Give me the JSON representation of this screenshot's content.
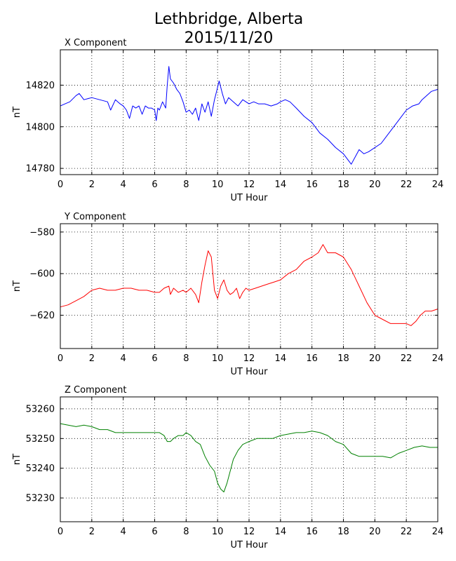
{
  "figure": {
    "title_line1": "Lethbridge, Alberta",
    "title_line2": "2015/11/20"
  },
  "chart_data": [
    {
      "type": "line",
      "title": "X Component",
      "xlabel": "UT Hour",
      "ylabel": "nT",
      "xlim": [
        0,
        24
      ],
      "ylim": [
        14777,
        14837
      ],
      "xticks": [
        0,
        2,
        4,
        6,
        8,
        10,
        12,
        14,
        16,
        18,
        20,
        22,
        24
      ],
      "yticks": [
        14780,
        14800,
        14820
      ],
      "grid": true,
      "color": "#0000ff",
      "series": [
        {
          "x": [
            0,
            0.3,
            0.6,
            1.0,
            1.2,
            1.5,
            2.0,
            2.5,
            3.0,
            3.2,
            3.5,
            3.8,
            4.0,
            4.2,
            4.4,
            4.6,
            4.8,
            5.0,
            5.2,
            5.4,
            5.6,
            5.8,
            6.0,
            6.1,
            6.2,
            6.3,
            6.5,
            6.7,
            6.8,
            6.9,
            7.0,
            7.2,
            7.4,
            7.6,
            7.8,
            8.0,
            8.2,
            8.4,
            8.6,
            8.8,
            9.0,
            9.2,
            9.4,
            9.6,
            9.8,
            10.0,
            10.1,
            10.3,
            10.5,
            10.7,
            11.0,
            11.3,
            11.6,
            12.0,
            12.3,
            12.6,
            13.0,
            13.4,
            13.8,
            14.0,
            14.3,
            14.6,
            15.0,
            15.5,
            16.0,
            16.5,
            17.0,
            17.5,
            18.0,
            18.5,
            19.0,
            19.3,
            19.6,
            20.0,
            20.4,
            20.8,
            21.2,
            21.6,
            22.0,
            22.4,
            22.8,
            23.0,
            23.3,
            23.6,
            24.0
          ],
          "y": [
            14810,
            14811,
            14812,
            14815,
            14816,
            14813,
            14814,
            14813,
            14812,
            14808,
            14813,
            14811,
            14810,
            14808,
            14804,
            14810,
            14809,
            14810,
            14806,
            14810,
            14809,
            14809,
            14808,
            14803,
            14809,
            14808,
            14812,
            14809,
            14820,
            14829,
            14823,
            14821,
            14818,
            14816,
            14812,
            14807,
            14808,
            14806,
            14809,
            14803,
            14811,
            14807,
            14812,
            14805,
            14813,
            14819,
            14822,
            14816,
            14811,
            14814,
            14812,
            14810,
            14813,
            14811,
            14812,
            14811,
            14811,
            14810,
            14811,
            14812,
            14813,
            14812,
            14809,
            14805,
            14802,
            14797,
            14794,
            14790,
            14787,
            14782,
            14789,
            14787,
            14788,
            14790,
            14792,
            14796,
            14800,
            14804,
            14808,
            14810,
            14811,
            14813,
            14815,
            14817,
            14818
          ]
        }
      ]
    },
    {
      "type": "line",
      "title": "Y Component",
      "xlabel": "UT Hour",
      "ylabel": "nT",
      "xlim": [
        0,
        24
      ],
      "ylim": [
        -636,
        -576
      ],
      "xticks": [
        0,
        2,
        4,
        6,
        8,
        10,
        12,
        14,
        16,
        18,
        20,
        22,
        24
      ],
      "yticks": [
        -620,
        -600,
        -580
      ],
      "grid": true,
      "color": "#ff0000",
      "series": [
        {
          "x": [
            0,
            0.5,
            1.0,
            1.5,
            2.0,
            2.5,
            3.0,
            3.5,
            4.0,
            4.5,
            5.0,
            5.5,
            6.0,
            6.3,
            6.6,
            6.9,
            7.0,
            7.2,
            7.5,
            7.8,
            8.0,
            8.3,
            8.6,
            8.8,
            9.0,
            9.2,
            9.4,
            9.6,
            9.8,
            10.0,
            10.2,
            10.4,
            10.6,
            10.8,
            11.0,
            11.2,
            11.4,
            11.6,
            11.8,
            12.0,
            12.4,
            12.8,
            13.2,
            13.6,
            14.0,
            14.5,
            15.0,
            15.5,
            16.0,
            16.4,
            16.7,
            17.0,
            17.5,
            18.0,
            18.5,
            19.0,
            19.5,
            20.0,
            20.5,
            21.0,
            21.5,
            22.0,
            22.3,
            22.6,
            22.9,
            23.2,
            23.6,
            24.0
          ],
          "y": [
            -616,
            -615,
            -613,
            -611,
            -608,
            -607,
            -608,
            -608,
            -607,
            -607,
            -608,
            -608,
            -609,
            -609,
            -607,
            -606,
            -610,
            -607,
            -609,
            -608,
            -609,
            -607,
            -610,
            -614,
            -604,
            -596,
            -589,
            -592,
            -608,
            -612,
            -606,
            -603,
            -608,
            -610,
            -609,
            -607,
            -612,
            -609,
            -607,
            -608,
            -607,
            -606,
            -605,
            -604,
            -603,
            -600,
            -598,
            -594,
            -592,
            -590,
            -586,
            -590,
            -590,
            -592,
            -598,
            -606,
            -614,
            -620,
            -622,
            -624,
            -624,
            -624,
            -625,
            -623,
            -620,
            -618,
            -618,
            -617
          ]
        }
      ]
    },
    {
      "type": "line",
      "title": "Z Component",
      "xlabel": "UT Hour",
      "ylabel": "nT",
      "xlim": [
        0,
        24
      ],
      "ylim": [
        53222,
        53264
      ],
      "xticks": [
        0,
        2,
        4,
        6,
        8,
        10,
        12,
        14,
        16,
        18,
        20,
        22,
        24
      ],
      "yticks": [
        53230,
        53240,
        53250,
        53260
      ],
      "grid": true,
      "color": "#008000",
      "series": [
        {
          "x": [
            0,
            0.5,
            1.0,
            1.5,
            2.0,
            2.5,
            3.0,
            3.5,
            4.0,
            4.5,
            5.0,
            5.5,
            6.0,
            6.3,
            6.6,
            6.8,
            7.0,
            7.2,
            7.5,
            7.8,
            8.0,
            8.3,
            8.6,
            8.9,
            9.2,
            9.5,
            9.8,
            10.0,
            10.2,
            10.4,
            10.6,
            10.8,
            11.0,
            11.3,
            11.6,
            12.0,
            12.5,
            13.0,
            13.5,
            14.0,
            14.5,
            15.0,
            15.5,
            16.0,
            16.5,
            17.0,
            17.5,
            18.0,
            18.5,
            19.0,
            19.5,
            20.0,
            20.5,
            21.0,
            21.5,
            22.0,
            22.5,
            23.0,
            23.5,
            24.0
          ],
          "y": [
            53255,
            53254.5,
            53254,
            53254.5,
            53254,
            53253,
            53253,
            53252,
            53252,
            53252,
            53252,
            53252,
            53252,
            53252,
            53251,
            53249,
            53249,
            53250,
            53251,
            53251,
            53252,
            53251,
            53249,
            53248,
            53244,
            53241,
            53239,
            53235,
            53233,
            53232,
            53235,
            53239,
            53243,
            53246,
            53248,
            53249,
            53250,
            53250,
            53250,
            53251,
            53251.5,
            53252,
            53252,
            53252.5,
            53252,
            53251,
            53249,
            53248,
            53245,
            53244,
            53244,
            53244,
            53244,
            53243.5,
            53245,
            53246,
            53247,
            53247.5,
            53247,
            53247
          ]
        }
      ]
    }
  ]
}
